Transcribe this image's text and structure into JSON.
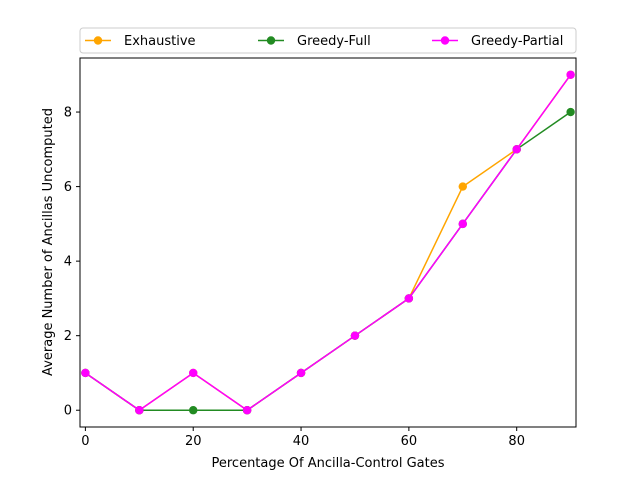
{
  "chart_data": {
    "type": "line",
    "title": "",
    "xlabel": "Percentage Of Ancilla-Control Gates",
    "ylabel": "Average Number of Ancillas Uncomputed",
    "x": [
      0,
      10,
      20,
      30,
      40,
      50,
      60,
      70,
      80,
      90
    ],
    "xlim": [
      -1,
      91
    ],
    "ylim": [
      -0.45,
      9.45
    ],
    "xticks": [
      0,
      20,
      40,
      60,
      80
    ],
    "yticks": [
      0,
      2,
      4,
      6,
      8
    ],
    "grid": false,
    "legend_position": "top, above plot, 3 columns",
    "series": [
      {
        "name": "Exhaustive",
        "color": "#ffa500",
        "values": [
          1,
          0,
          1,
          0,
          1,
          2,
          3,
          6,
          7,
          9
        ]
      },
      {
        "name": "Greedy-Full",
        "color": "#228b22",
        "values": [
          1,
          0,
          0,
          0,
          1,
          2,
          3,
          5,
          7,
          8
        ]
      },
      {
        "name": "Greedy-Partial",
        "color": "#ff00ff",
        "values": [
          1,
          0,
          1,
          0,
          1,
          2,
          3,
          5,
          7,
          9
        ]
      }
    ]
  }
}
